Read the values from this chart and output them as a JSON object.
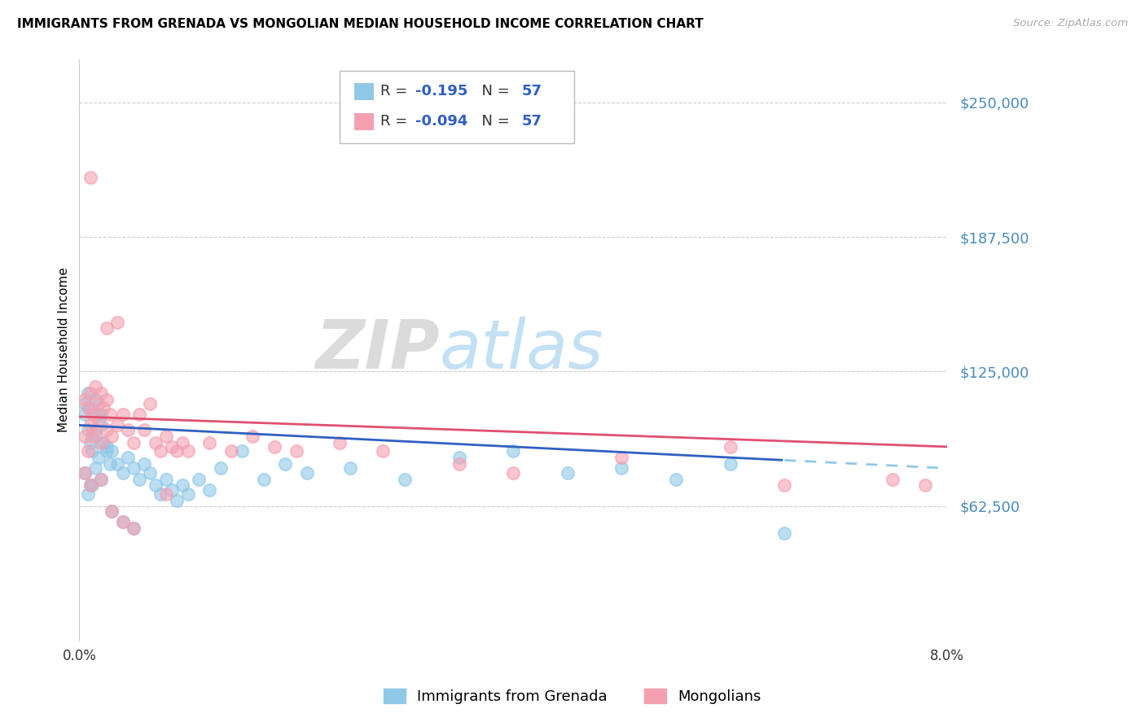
{
  "title": "IMMIGRANTS FROM GRENADA VS MONGOLIAN MEDIAN HOUSEHOLD INCOME CORRELATION CHART",
  "source": "Source: ZipAtlas.com",
  "ylabel": "Median Household Income",
  "y_ticks": [
    62500,
    125000,
    187500,
    250000
  ],
  "y_tick_labels": [
    "$62,500",
    "$125,000",
    "$187,500",
    "$250,000"
  ],
  "xlim": [
    0.0,
    8.0
  ],
  "ylim": [
    0,
    270000
  ],
  "legend_labels": [
    "Immigrants from Grenada",
    "Mongolians"
  ],
  "r_grenada": -0.195,
  "r_mongolian": -0.094,
  "n": 57,
  "title_fontsize": 11,
  "axis_label_color": "#4b8bbe",
  "background_color": "#ffffff",
  "grenada_color": "#90c8e8",
  "mongolian_color": "#f4a0b0",
  "grenada_line_color": "#3060c0",
  "mongolian_line_color": "#e05070",
  "grenada_line_dash_color": "#90c8e8",
  "grenada_points": [
    [
      0.05,
      105000
    ],
    [
      0.08,
      98000
    ],
    [
      0.1,
      92000
    ],
    [
      0.12,
      88000
    ],
    [
      0.15,
      95000
    ],
    [
      0.18,
      105000
    ],
    [
      0.2,
      100000
    ],
    [
      0.22,
      92000
    ],
    [
      0.25,
      88000
    ],
    [
      0.28,
      82000
    ],
    [
      0.05,
      78000
    ],
    [
      0.1,
      72000
    ],
    [
      0.15,
      80000
    ],
    [
      0.2,
      75000
    ],
    [
      0.08,
      68000
    ],
    [
      0.12,
      72000
    ],
    [
      0.18,
      85000
    ],
    [
      0.25,
      90000
    ],
    [
      0.3,
      88000
    ],
    [
      0.35,
      82000
    ],
    [
      0.4,
      78000
    ],
    [
      0.45,
      85000
    ],
    [
      0.5,
      80000
    ],
    [
      0.55,
      75000
    ],
    [
      0.6,
      82000
    ],
    [
      0.65,
      78000
    ],
    [
      0.7,
      72000
    ],
    [
      0.75,
      68000
    ],
    [
      0.8,
      75000
    ],
    [
      0.85,
      70000
    ],
    [
      0.9,
      65000
    ],
    [
      0.95,
      72000
    ],
    [
      1.0,
      68000
    ],
    [
      1.1,
      75000
    ],
    [
      1.2,
      70000
    ],
    [
      1.3,
      80000
    ],
    [
      1.5,
      88000
    ],
    [
      1.7,
      75000
    ],
    [
      1.9,
      82000
    ],
    [
      2.1,
      78000
    ],
    [
      0.05,
      110000
    ],
    [
      0.08,
      115000
    ],
    [
      0.1,
      108000
    ],
    [
      0.15,
      112000
    ],
    [
      0.2,
      105000
    ],
    [
      2.5,
      80000
    ],
    [
      3.0,
      75000
    ],
    [
      3.5,
      85000
    ],
    [
      4.0,
      88000
    ],
    [
      4.5,
      78000
    ],
    [
      5.0,
      80000
    ],
    [
      5.5,
      75000
    ],
    [
      6.0,
      82000
    ],
    [
      6.5,
      50000
    ],
    [
      0.3,
      60000
    ],
    [
      0.4,
      55000
    ],
    [
      0.5,
      52000
    ]
  ],
  "mongolian_points": [
    [
      0.05,
      112000
    ],
    [
      0.08,
      108000
    ],
    [
      0.1,
      115000
    ],
    [
      0.12,
      105000
    ],
    [
      0.15,
      118000
    ],
    [
      0.18,
      110000
    ],
    [
      0.2,
      115000
    ],
    [
      0.22,
      108000
    ],
    [
      0.25,
      112000
    ],
    [
      0.28,
      105000
    ],
    [
      0.05,
      95000
    ],
    [
      0.1,
      100000
    ],
    [
      0.15,
      98000
    ],
    [
      0.2,
      92000
    ],
    [
      0.08,
      88000
    ],
    [
      0.12,
      95000
    ],
    [
      0.18,
      102000
    ],
    [
      0.25,
      98000
    ],
    [
      0.3,
      95000
    ],
    [
      0.35,
      100000
    ],
    [
      0.4,
      105000
    ],
    [
      0.45,
      98000
    ],
    [
      0.5,
      92000
    ],
    [
      0.55,
      105000
    ],
    [
      0.6,
      98000
    ],
    [
      0.65,
      110000
    ],
    [
      0.1,
      215000
    ],
    [
      0.25,
      145000
    ],
    [
      0.35,
      148000
    ],
    [
      0.7,
      92000
    ],
    [
      0.75,
      88000
    ],
    [
      0.8,
      95000
    ],
    [
      0.85,
      90000
    ],
    [
      0.9,
      88000
    ],
    [
      0.95,
      92000
    ],
    [
      1.0,
      88000
    ],
    [
      1.2,
      92000
    ],
    [
      1.4,
      88000
    ],
    [
      1.6,
      95000
    ],
    [
      1.8,
      90000
    ],
    [
      2.0,
      88000
    ],
    [
      2.4,
      92000
    ],
    [
      2.8,
      88000
    ],
    [
      0.05,
      78000
    ],
    [
      0.1,
      72000
    ],
    [
      0.2,
      75000
    ],
    [
      7.5,
      75000
    ],
    [
      7.8,
      72000
    ],
    [
      3.5,
      82000
    ],
    [
      4.0,
      78000
    ],
    [
      5.0,
      85000
    ],
    [
      6.5,
      72000
    ],
    [
      0.3,
      60000
    ],
    [
      0.4,
      55000
    ],
    [
      0.5,
      52000
    ],
    [
      6.0,
      90000
    ],
    [
      0.8,
      68000
    ]
  ]
}
